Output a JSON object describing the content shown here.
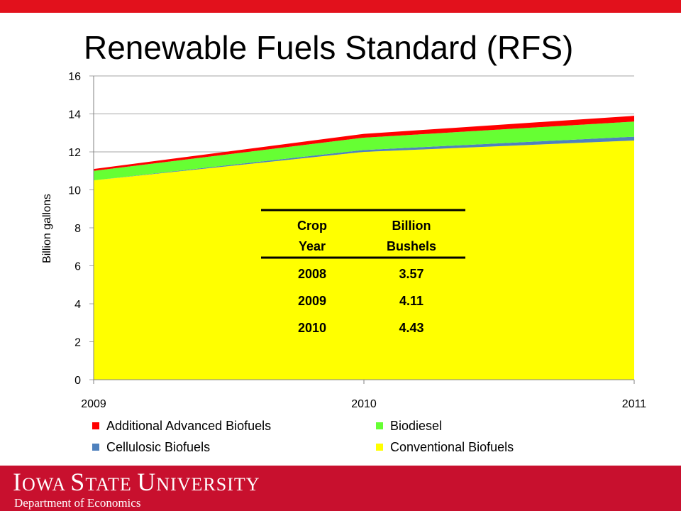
{
  "slide": {
    "title": "Renewable Fuels Standard (RFS)"
  },
  "footer": {
    "university_caps": [
      "I",
      "S",
      "U"
    ],
    "university_rest": [
      "OWA ",
      "TATE ",
      "NIVERSITY"
    ],
    "department": "Department of Economics"
  },
  "colors": {
    "top_bar": "#e2111c",
    "footer": "#c8102e",
    "conventional": "#ffff00",
    "cellulosic": "#4f81bd",
    "biodiesel": "#66ff33",
    "additional_advanced": "#ff0000"
  },
  "chart_data": {
    "type": "area",
    "stacked": true,
    "x": [
      "2009",
      "2010",
      "2011"
    ],
    "ylabel": "Billion gallons",
    "ylim": [
      0,
      16
    ],
    "yticks": [
      "0",
      "2",
      "4",
      "6",
      "8",
      "10",
      "12",
      "14",
      "16"
    ],
    "grid": true,
    "legend_position": "bottom",
    "series": [
      {
        "name": "Conventional Biofuels",
        "color": "#ffff00",
        "values": [
          10.5,
          12.0,
          12.6
        ]
      },
      {
        "name": "Cellulosic Biofuels",
        "color": "#4f81bd",
        "values": [
          0.0,
          0.1,
          0.2
        ]
      },
      {
        "name": "Biodiesel",
        "color": "#66ff33",
        "values": [
          0.5,
          0.65,
          0.8
        ]
      },
      {
        "name": "Additional Advanced Biofuels",
        "color": "#ff0000",
        "values": [
          0.1,
          0.2,
          0.3
        ]
      }
    ],
    "legend_order": [
      "Additional Advanced Biofuels",
      "Biodiesel",
      "Cellulosic Biofuels",
      "Conventional Biofuels"
    ],
    "inset_table": {
      "headers": [
        [
          "Crop",
          "Year"
        ],
        [
          "Billion",
          "Bushels"
        ]
      ],
      "rows": [
        [
          "2008",
          "3.57"
        ],
        [
          "2009",
          "4.11"
        ],
        [
          "2010",
          "4.43"
        ]
      ]
    }
  }
}
